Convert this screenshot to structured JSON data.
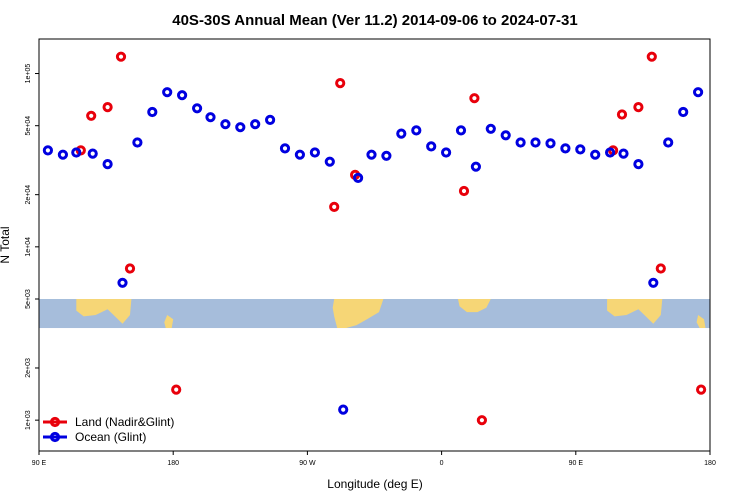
{
  "chart_data": {
    "type": "scatter",
    "title": "40S-30S Annual Mean (Ver 11.2)   2014-09-06 to 2024-07-31",
    "xlabel": "Longitude (deg E)",
    "ylabel": "N Total",
    "x_scale": "linear",
    "y_scale": "log",
    "xlim": [
      90,
      540
    ],
    "ylim": [
      700,
      150000
    ],
    "x_ticks": [
      {
        "value": 90,
        "label": "90 E"
      },
      {
        "value": 180,
        "label": "180"
      },
      {
        "value": 270,
        "label": "90 W"
      },
      {
        "value": 360,
        "label": "0"
      },
      {
        "value": 450,
        "label": "90 E"
      },
      {
        "value": 540,
        "label": "180"
      }
    ],
    "y_ticks": [
      {
        "value": 1000,
        "label": "1e+03"
      },
      {
        "value": 2000,
        "label": "2e+03"
      },
      {
        "value": 5000,
        "label": "5e+03"
      },
      {
        "value": 10000,
        "label": "1e+04"
      },
      {
        "value": 20000,
        "label": "2e+04"
      },
      {
        "value": 50000,
        "label": "5e+04"
      },
      {
        "value": 100000,
        "label": "1e+05"
      }
    ],
    "grid": false,
    "legend_position": "bottom-left",
    "map_band": {
      "y_top": 5000,
      "y_bottom": 3400,
      "ocean_color": "#a6bddb",
      "land_color": "#f6d676"
    },
    "series": [
      {
        "name": "Land (Nadir&Glint)",
        "color": "#e8000b",
        "points": [
          {
            "x": 118,
            "y": 36000
          },
          {
            "x": 125,
            "y": 57000
          },
          {
            "x": 136,
            "y": 64000
          },
          {
            "x": 145,
            "y": 125000
          },
          {
            "x": 151,
            "y": 7500
          },
          {
            "x": 182,
            "y": 1500
          },
          {
            "x": 288,
            "y": 17000
          },
          {
            "x": 292,
            "y": 88000
          },
          {
            "x": 302,
            "y": 26000
          },
          {
            "x": 375,
            "y": 21000
          },
          {
            "x": 382,
            "y": 72000
          },
          {
            "x": 387,
            "y": 1000
          },
          {
            "x": 475,
            "y": 36000
          },
          {
            "x": 481,
            "y": 58000
          },
          {
            "x": 492,
            "y": 64000
          },
          {
            "x": 501,
            "y": 125000
          },
          {
            "x": 507,
            "y": 7500
          },
          {
            "x": 534,
            "y": 1500
          }
        ]
      },
      {
        "name": "Ocean (Glint)",
        "color": "#0000e0",
        "points": [
          {
            "x": 96,
            "y": 36000
          },
          {
            "x": 106,
            "y": 34000
          },
          {
            "x": 115,
            "y": 35000
          },
          {
            "x": 126,
            "y": 34500
          },
          {
            "x": 136,
            "y": 30000
          },
          {
            "x": 146,
            "y": 6200
          },
          {
            "x": 156,
            "y": 40000
          },
          {
            "x": 166,
            "y": 60000
          },
          {
            "x": 176,
            "y": 78000
          },
          {
            "x": 186,
            "y": 75000
          },
          {
            "x": 196,
            "y": 63000
          },
          {
            "x": 205,
            "y": 56000
          },
          {
            "x": 215,
            "y": 51000
          },
          {
            "x": 225,
            "y": 49000
          },
          {
            "x": 235,
            "y": 51000
          },
          {
            "x": 245,
            "y": 54000
          },
          {
            "x": 255,
            "y": 37000
          },
          {
            "x": 265,
            "y": 34000
          },
          {
            "x": 275,
            "y": 35000
          },
          {
            "x": 285,
            "y": 31000
          },
          {
            "x": 294,
            "y": 1150
          },
          {
            "x": 304,
            "y": 25000
          },
          {
            "x": 313,
            "y": 34000
          },
          {
            "x": 323,
            "y": 33500
          },
          {
            "x": 333,
            "y": 45000
          },
          {
            "x": 343,
            "y": 47000
          },
          {
            "x": 353,
            "y": 38000
          },
          {
            "x": 363,
            "y": 35000
          },
          {
            "x": 373,
            "y": 47000
          },
          {
            "x": 383,
            "y": 29000
          },
          {
            "x": 393,
            "y": 48000
          },
          {
            "x": 403,
            "y": 44000
          },
          {
            "x": 413,
            "y": 40000
          },
          {
            "x": 423,
            "y": 40000
          },
          {
            "x": 433,
            "y": 39500
          },
          {
            "x": 443,
            "y": 37000
          },
          {
            "x": 453,
            "y": 36500
          },
          {
            "x": 463,
            "y": 34000
          },
          {
            "x": 473,
            "y": 35000
          },
          {
            "x": 482,
            "y": 34500
          },
          {
            "x": 492,
            "y": 30000
          },
          {
            "x": 502,
            "y": 6200
          },
          {
            "x": 512,
            "y": 40000
          },
          {
            "x": 522,
            "y": 60000
          },
          {
            "x": 532,
            "y": 78000
          }
        ]
      }
    ]
  }
}
